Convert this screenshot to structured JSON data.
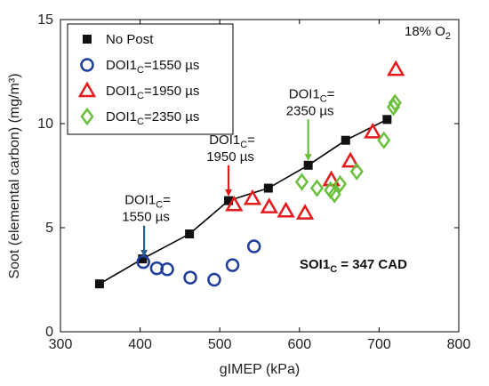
{
  "chart_data": {
    "type": "scatter",
    "xlabel": "gIMEP (kPa)",
    "ylabel": "Soot (elemental carbon) (mg/m³)",
    "xlim": [
      300,
      800
    ],
    "ylim": [
      0,
      15
    ],
    "xticks": [
      300,
      400,
      500,
      600,
      700,
      800
    ],
    "yticks": [
      0,
      5,
      10,
      15
    ],
    "xtick_labels": [
      "300",
      "400",
      "500",
      "600",
      "700",
      "800"
    ],
    "ytick_labels": [
      "0",
      "5",
      "10",
      "15"
    ],
    "grid": false,
    "legend_position": "top-left",
    "series": [
      {
        "name": "No Post",
        "marker": "square",
        "color": "#111111",
        "connected": true,
        "x": [
          349,
          403,
          462,
          511,
          561,
          611,
          658,
          710
        ],
        "y": [
          2.3,
          3.5,
          4.7,
          6.3,
          6.9,
          8.0,
          9.2,
          10.2
        ]
      },
      {
        "name": "DOI1_C=1550 µs",
        "marker": "circle",
        "color": "#1f3d9c",
        "connected": false,
        "x": [
          404,
          421,
          434,
          463,
          493,
          516,
          543
        ],
        "y": [
          3.35,
          3.05,
          3.0,
          2.6,
          2.5,
          3.2,
          4.1
        ]
      },
      {
        "name": "DOI1_C=1950 µs",
        "marker": "triangle",
        "color": "#e41a1c",
        "connected": false,
        "x": [
          518,
          541,
          562,
          583,
          607,
          640,
          664,
          692,
          721
        ],
        "y": [
          6.1,
          6.4,
          6.0,
          5.8,
          5.7,
          7.3,
          8.2,
          9.6,
          12.6
        ]
      },
      {
        "name": "DOI1_C=2350 µs",
        "marker": "diamond",
        "color": "#6abf3c",
        "connected": false,
        "x": [
          603,
          622,
          639,
          651,
          644,
          672,
          706,
          718,
          720
        ],
        "y": [
          7.2,
          6.9,
          6.8,
          7.1,
          6.6,
          7.7,
          9.2,
          10.8,
          11.0
        ]
      }
    ],
    "annotations": [
      {
        "label": "DOI1",
        "sub": "C",
        "tail": "=",
        "line2": "1550 µs",
        "arrow_color": "#2a5d8f",
        "arrow_x": 405,
        "arrow_y_from": 5.1,
        "arrow_y_to": 3.6
      },
      {
        "label": "DOI1",
        "sub": "C",
        "tail": "=",
        "line2": "1950 µs",
        "arrow_color": "#e41a1c",
        "arrow_x": 511,
        "arrow_y_from": 8.0,
        "arrow_y_to": 6.5
      },
      {
        "label": "DOI1",
        "sub": "C",
        "tail": "=",
        "line2": "2350 µs",
        "arrow_color": "#6abf3c",
        "arrow_x": 611,
        "arrow_y_from": 10.2,
        "arrow_y_to": 8.2
      }
    ],
    "corner_label": {
      "main": "18% O",
      "sub": "2"
    },
    "soi_label": {
      "main": "SOI1",
      "sub": "C",
      "tail": " = 347 CAD"
    }
  }
}
